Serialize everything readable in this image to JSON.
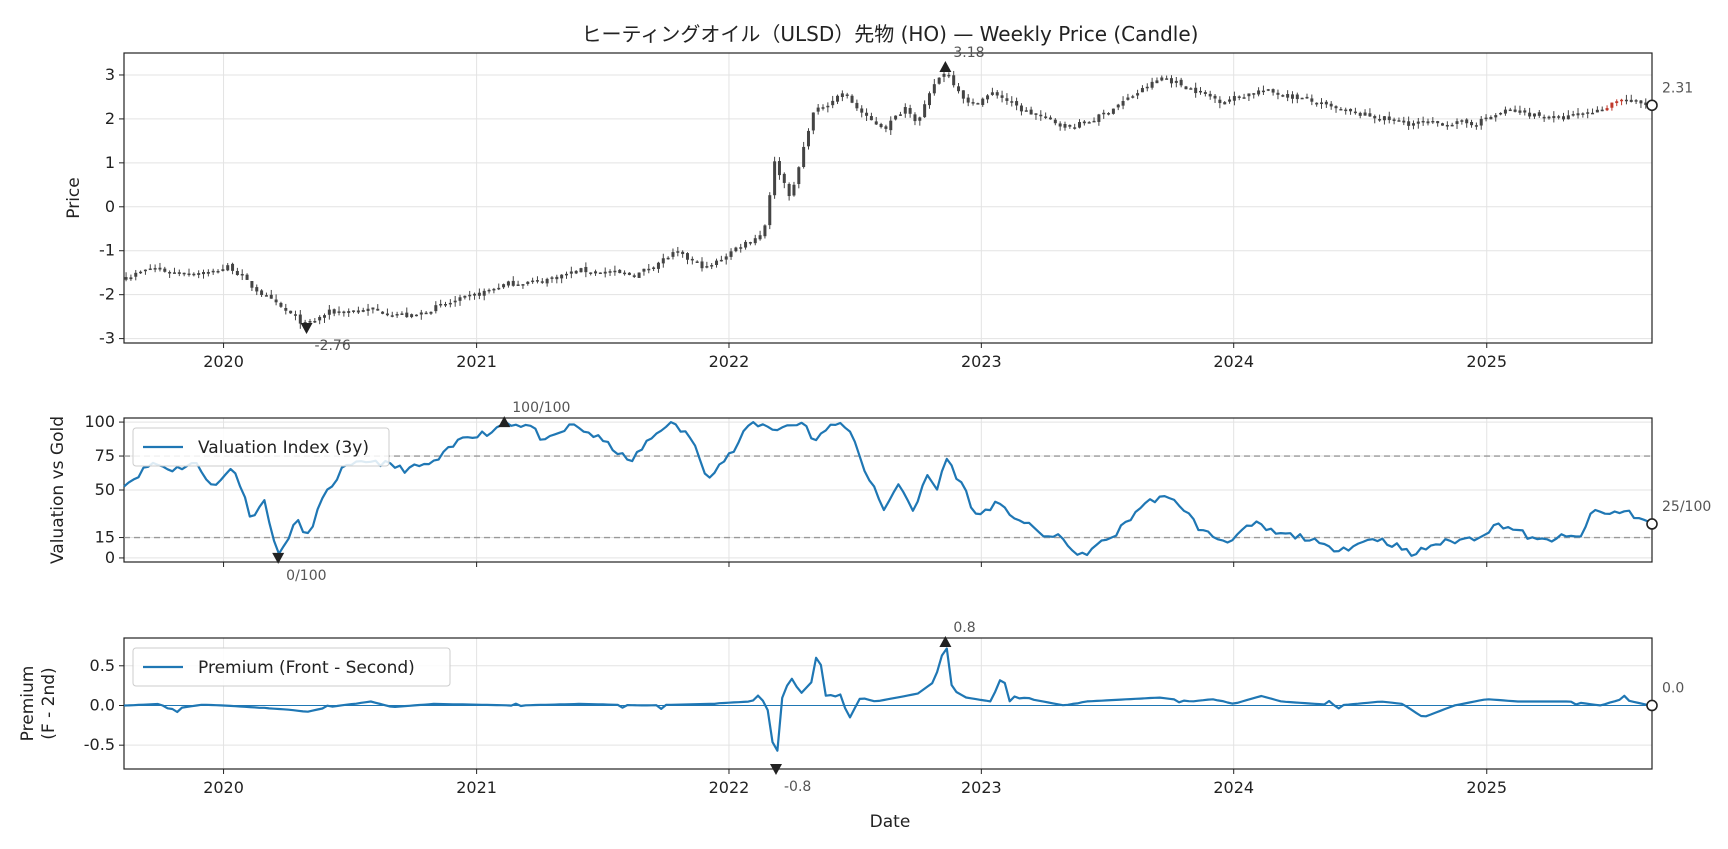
{
  "title": "ヒーティングオイル（ULSD）先物 (HO) — Weekly Price (Candle)",
  "x_axis": {
    "label": "Date",
    "ticks": [
      "2020",
      "2021",
      "2022",
      "2023",
      "2024",
      "2025"
    ]
  },
  "colors": {
    "candle": "#444444",
    "candle_up": "#c0392b",
    "line": "#1f77b4",
    "ref": "#999999",
    "grid": "#e3e3e3"
  },
  "chart_data": [
    {
      "type": "candlestick",
      "panel": "price",
      "ylabel": "Price",
      "ylim": [
        -3.1,
        3.5
      ],
      "yticks": [
        -3,
        -2,
        -1,
        0,
        1,
        2,
        3
      ],
      "grid": true,
      "annotations": {
        "max": {
          "label": "3.18",
          "date": "2022-11-10",
          "value": 3.18
        },
        "min": {
          "label": "-2.76",
          "date": "2020-04-30",
          "value": -2.76
        },
        "last": {
          "label": "2.31",
          "value": 2.31
        }
      },
      "anchors": [
        [
          "2019-08-15",
          -1.6
        ],
        [
          "2019-09-20",
          -1.4
        ],
        [
          "2019-10-20",
          -1.5
        ],
        [
          "2019-12-15",
          -1.5
        ],
        [
          "2020-01-10",
          -1.35
        ],
        [
          "2020-02-10",
          -1.8
        ],
        [
          "2020-03-15",
          -2.2
        ],
        [
          "2020-04-30",
          -2.7
        ],
        [
          "2020-06-01",
          -2.4
        ],
        [
          "2020-08-01",
          -2.35
        ],
        [
          "2020-10-01",
          -2.5
        ],
        [
          "2020-11-01",
          -2.3
        ],
        [
          "2021-01-01",
          -2.0
        ],
        [
          "2021-02-15",
          -1.75
        ],
        [
          "2021-04-01",
          -1.7
        ],
        [
          "2021-06-01",
          -1.45
        ],
        [
          "2021-08-20",
          -1.55
        ],
        [
          "2021-10-15",
          -1.05
        ],
        [
          "2021-12-01",
          -1.4
        ],
        [
          "2022-01-15",
          -0.9
        ],
        [
          "2022-02-20",
          -0.6
        ],
        [
          "2022-03-08",
          1.0
        ],
        [
          "2022-04-01",
          0.2
        ],
        [
          "2022-05-01",
          2.1
        ],
        [
          "2022-06-15",
          2.6
        ],
        [
          "2022-07-20",
          2.0
        ],
        [
          "2022-08-15",
          1.8
        ],
        [
          "2022-09-15",
          2.3
        ],
        [
          "2022-10-01",
          1.9
        ],
        [
          "2022-10-25",
          2.8
        ],
        [
          "2022-11-10",
          3.1
        ],
        [
          "2022-12-15",
          2.3
        ],
        [
          "2023-01-20",
          2.6
        ],
        [
          "2023-03-01",
          2.2
        ],
        [
          "2023-05-10",
          1.8
        ],
        [
          "2023-06-15",
          2.0
        ],
        [
          "2023-09-20",
          2.95
        ],
        [
          "2023-12-15",
          2.4
        ],
        [
          "2024-02-10",
          2.65
        ],
        [
          "2024-04-01",
          2.5
        ],
        [
          "2024-06-01",
          2.2
        ],
        [
          "2024-09-10",
          1.9
        ],
        [
          "2024-12-15",
          1.9
        ],
        [
          "2025-02-01",
          2.2
        ],
        [
          "2025-04-15",
          2.0
        ],
        [
          "2025-06-15",
          2.2
        ],
        [
          "2025-07-10",
          2.45
        ],
        [
          "2025-08-25",
          2.31
        ]
      ]
    },
    {
      "type": "line",
      "panel": "valuation",
      "ylabel": "Valuation vs Gold",
      "ylim": [
        -3,
        103
      ],
      "yticks": [
        0,
        15,
        50,
        75,
        100
      ],
      "reference_lines": [
        75,
        15
      ],
      "legend": {
        "label": "Valuation Index (3y)",
        "position": "upper-left"
      },
      "annotations": {
        "max": {
          "label": "100/100",
          "date": "2021-02-10",
          "value": 100
        },
        "min": {
          "label": "0/100",
          "date": "2020-03-20",
          "value": 0
        },
        "last": {
          "label": "25/100",
          "value": 25
        }
      },
      "anchors": [
        [
          "2019-08-15",
          55
        ],
        [
          "2019-09-20",
          70
        ],
        [
          "2019-10-20",
          65
        ],
        [
          "2019-11-20",
          70
        ],
        [
          "2019-12-20",
          52
        ],
        [
          "2020-01-15",
          68
        ],
        [
          "2020-02-10",
          30
        ],
        [
          "2020-03-01",
          42
        ],
        [
          "2020-03-20",
          0
        ],
        [
          "2020-04-15",
          28
        ],
        [
          "2020-05-01",
          15
        ],
        [
          "2020-05-20",
          40
        ],
        [
          "2020-06-20",
          65
        ],
        [
          "2020-08-01",
          72
        ],
        [
          "2020-09-20",
          65
        ],
        [
          "2020-11-01",
          70
        ],
        [
          "2020-12-15",
          90
        ],
        [
          "2021-01-20",
          92
        ],
        [
          "2021-02-10",
          100
        ],
        [
          "2021-03-20",
          97
        ],
        [
          "2021-04-10",
          85
        ],
        [
          "2021-05-20",
          98
        ],
        [
          "2021-06-20",
          90
        ],
        [
          "2021-07-20",
          80
        ],
        [
          "2021-08-10",
          70
        ],
        [
          "2021-09-05",
          85
        ],
        [
          "2021-10-05",
          100
        ],
        [
          "2021-11-05",
          90
        ],
        [
          "2021-12-01",
          60
        ],
        [
          "2022-01-10",
          80
        ],
        [
          "2022-02-01",
          100
        ],
        [
          "2022-03-10",
          95
        ],
        [
          "2022-04-20",
          100
        ],
        [
          "2022-05-05",
          85
        ],
        [
          "2022-06-01",
          100
        ],
        [
          "2022-06-25",
          95
        ],
        [
          "2022-07-20",
          60
        ],
        [
          "2022-08-15",
          35
        ],
        [
          "2022-09-05",
          55
        ],
        [
          "2022-09-25",
          35
        ],
        [
          "2022-10-15",
          60
        ],
        [
          "2022-10-30",
          50
        ],
        [
          "2022-11-10",
          75
        ],
        [
          "2022-12-10",
          48
        ],
        [
          "2022-12-25",
          30
        ],
        [
          "2023-01-20",
          40
        ],
        [
          "2023-02-20",
          30
        ],
        [
          "2023-03-15",
          22
        ],
        [
          "2023-04-10",
          15
        ],
        [
          "2023-05-01",
          15
        ],
        [
          "2023-05-20",
          0
        ],
        [
          "2023-06-15",
          8
        ],
        [
          "2023-07-15",
          18
        ],
        [
          "2023-08-20",
          38
        ],
        [
          "2023-09-15",
          45
        ],
        [
          "2023-10-15",
          40
        ],
        [
          "2023-11-15",
          20
        ],
        [
          "2023-12-20",
          12
        ],
        [
          "2024-02-01",
          25
        ],
        [
          "2024-03-01",
          18
        ],
        [
          "2024-04-15",
          15
        ],
        [
          "2024-05-15",
          7
        ],
        [
          "2024-06-20",
          8
        ],
        [
          "2024-07-20",
          15
        ],
        [
          "2024-08-20",
          10
        ],
        [
          "2024-09-15",
          2
        ],
        [
          "2024-10-15",
          10
        ],
        [
          "2024-12-15",
          15
        ],
        [
          "2025-01-20",
          25
        ],
        [
          "2025-02-15",
          20
        ],
        [
          "2025-03-15",
          12
        ],
        [
          "2025-04-15",
          15
        ],
        [
          "2025-05-15",
          15
        ],
        [
          "2025-06-05",
          35
        ],
        [
          "2025-06-25",
          32
        ],
        [
          "2025-07-20",
          35
        ],
        [
          "2025-08-25",
          25
        ]
      ]
    },
    {
      "type": "line",
      "panel": "premium",
      "ylabel": [
        "Premium",
        "(F - 2nd)"
      ],
      "ylim": [
        -0.8,
        0.85
      ],
      "yticks": [
        -0.5,
        0.0,
        0.5
      ],
      "zero_line": true,
      "legend": {
        "label": "Premium (Front - Second)",
        "position": "upper-left"
      },
      "annotations": {
        "max": {
          "label": "0.8",
          "date": "2022-11-10",
          "value": 0.8
        },
        "min": {
          "label": "-0.8",
          "date": "2022-03-10",
          "value": -0.8
        },
        "last": {
          "label": "0.0",
          "value": 0.0
        }
      },
      "anchors": [
        [
          "2019-08-15",
          0.0
        ],
        [
          "2019-10-01",
          0.02
        ],
        [
          "2019-10-15",
          -0.05
        ],
        [
          "2019-12-01",
          0.01
        ],
        [
          "2020-01-01",
          0.0
        ],
        [
          "2020-04-01",
          -0.05
        ],
        [
          "2020-05-01",
          -0.08
        ],
        [
          "2020-06-01",
          -0.02
        ],
        [
          "2020-08-01",
          0.05
        ],
        [
          "2020-09-01",
          -0.02
        ],
        [
          "2020-11-01",
          0.02
        ],
        [
          "2021-03-01",
          0.0
        ],
        [
          "2021-06-01",
          0.02
        ],
        [
          "2021-09-01",
          0.0
        ],
        [
          "2021-12-01",
          0.02
        ],
        [
          "2022-02-01",
          0.05
        ],
        [
          "2022-02-15",
          0.1
        ],
        [
          "2022-02-25",
          0.0
        ],
        [
          "2022-03-10",
          -0.75
        ],
        [
          "2022-03-20",
          0.15
        ],
        [
          "2022-04-01",
          0.35
        ],
        [
          "2022-04-15",
          0.15
        ],
        [
          "2022-05-01",
          0.3
        ],
        [
          "2022-05-10",
          0.75
        ],
        [
          "2022-05-20",
          0.15
        ],
        [
          "2022-06-10",
          0.1
        ],
        [
          "2022-06-25",
          -0.15
        ],
        [
          "2022-07-10",
          0.1
        ],
        [
          "2022-08-01",
          0.05
        ],
        [
          "2022-09-01",
          0.1
        ],
        [
          "2022-10-01",
          0.15
        ],
        [
          "2022-10-25",
          0.3
        ],
        [
          "2022-11-10",
          0.78
        ],
        [
          "2022-11-20",
          0.2
        ],
        [
          "2022-12-10",
          0.1
        ],
        [
          "2023-01-15",
          0.05
        ],
        [
          "2023-02-01",
          0.4
        ],
        [
          "2023-02-10",
          0.05
        ],
        [
          "2023-03-01",
          0.1
        ],
        [
          "2023-05-01",
          0.0
        ],
        [
          "2023-06-01",
          0.05
        ],
        [
          "2023-09-15",
          0.1
        ],
        [
          "2023-11-01",
          0.05
        ],
        [
          "2023-12-01",
          0.08
        ],
        [
          "2024-01-01",
          0.02
        ],
        [
          "2024-02-10",
          0.12
        ],
        [
          "2024-03-10",
          0.05
        ],
        [
          "2024-06-01",
          0.0
        ],
        [
          "2024-08-01",
          0.05
        ],
        [
          "2024-09-01",
          0.02
        ],
        [
          "2024-10-01",
          -0.15
        ],
        [
          "2024-11-15",
          0.0
        ],
        [
          "2025-01-01",
          0.08
        ],
        [
          "2025-02-15",
          0.05
        ],
        [
          "2025-05-01",
          0.05
        ],
        [
          "2025-06-15",
          0.0
        ],
        [
          "2025-07-15",
          0.08
        ],
        [
          "2025-08-25",
          0.0
        ]
      ]
    }
  ]
}
